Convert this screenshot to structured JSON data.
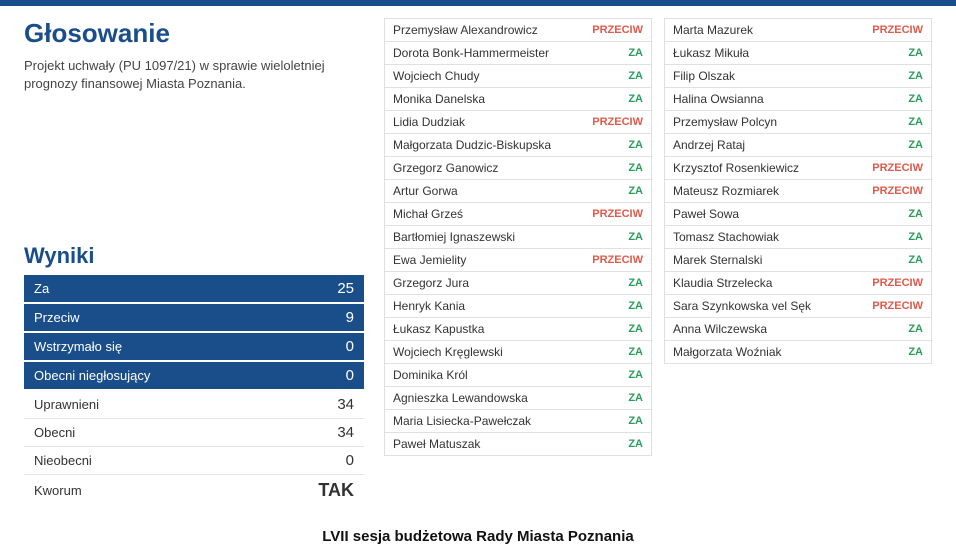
{
  "header": {
    "title": "Głosowanie",
    "description": "Projekt uchwały (PU 1097/21) w sprawie wieloletniej prognozy finansowej Miasta Poznania."
  },
  "results": {
    "title": "Wyniki",
    "rows_highlight": [
      {
        "label": "Za",
        "value": "25"
      },
      {
        "label": "Przeciw",
        "value": "9"
      },
      {
        "label": "Wstrzymało się",
        "value": "0"
      },
      {
        "label": "Obecni niegłosujący",
        "value": "0"
      }
    ],
    "rows_plain": [
      {
        "label": "Uprawnieni",
        "value": "34"
      },
      {
        "label": "Obecni",
        "value": "34"
      },
      {
        "label": "Nieobecni",
        "value": "0"
      }
    ],
    "kworum": {
      "label": "Kworum",
      "value": "TAK"
    }
  },
  "voters_col1": [
    {
      "name": "Przemysław Alexandrowicz",
      "vote": "PRZECIW"
    },
    {
      "name": "Dorota Bonk-Hammermeister",
      "vote": "ZA"
    },
    {
      "name": "Wojciech Chudy",
      "vote": "ZA"
    },
    {
      "name": "Monika Danelska",
      "vote": "ZA"
    },
    {
      "name": "Lidia Dudziak",
      "vote": "PRZECIW"
    },
    {
      "name": "Małgorzata Dudzic-Biskupska",
      "vote": "ZA"
    },
    {
      "name": "Grzegorz Ganowicz",
      "vote": "ZA"
    },
    {
      "name": "Artur Gorwa",
      "vote": "ZA"
    },
    {
      "name": "Michał Grześ",
      "vote": "PRZECIW"
    },
    {
      "name": "Bartłomiej Ignaszewski",
      "vote": "ZA"
    },
    {
      "name": "Ewa Jemielity",
      "vote": "PRZECIW"
    },
    {
      "name": "Grzegorz Jura",
      "vote": "ZA"
    },
    {
      "name": "Henryk Kania",
      "vote": "ZA"
    },
    {
      "name": "Łukasz Kapustka",
      "vote": "ZA"
    },
    {
      "name": "Wojciech Kręglewski",
      "vote": "ZA"
    },
    {
      "name": "Dominika Król",
      "vote": "ZA"
    },
    {
      "name": "Agnieszka Lewandowska",
      "vote": "ZA"
    },
    {
      "name": "Maria Lisiecka-Pawełczak",
      "vote": "ZA"
    },
    {
      "name": "Paweł Matuszak",
      "vote": "ZA"
    }
  ],
  "voters_col2": [
    {
      "name": "Marta Mazurek",
      "vote": "PRZECIW"
    },
    {
      "name": "Łukasz Mikuła",
      "vote": "ZA"
    },
    {
      "name": "Filip Olszak",
      "vote": "ZA"
    },
    {
      "name": "Halina Owsianna",
      "vote": "ZA"
    },
    {
      "name": "Przemysław Polcyn",
      "vote": "ZA"
    },
    {
      "name": "Andrzej Rataj",
      "vote": "ZA"
    },
    {
      "name": "Krzysztof Rosenkiewicz",
      "vote": "PRZECIW"
    },
    {
      "name": "Mateusz Rozmiarek",
      "vote": "PRZECIW"
    },
    {
      "name": "Paweł Sowa",
      "vote": "ZA"
    },
    {
      "name": "Tomasz Stachowiak",
      "vote": "ZA"
    },
    {
      "name": "Marek Sternalski",
      "vote": "ZA"
    },
    {
      "name": "Klaudia Strzelecka",
      "vote": "PRZECIW"
    },
    {
      "name": "Sara Szynkowska vel Sęk",
      "vote": "PRZECIW"
    },
    {
      "name": "Anna Wilczewska",
      "vote": "ZA"
    },
    {
      "name": "Małgorzata Woźniak",
      "vote": "ZA"
    }
  ],
  "footer": "LVII sesja budżetowa Rady Miasta Poznania",
  "colors": {
    "brand": "#1a4e8a",
    "za": "#2a9d5a",
    "przeciw": "#e05a4a",
    "border": "#e0e0e0"
  }
}
